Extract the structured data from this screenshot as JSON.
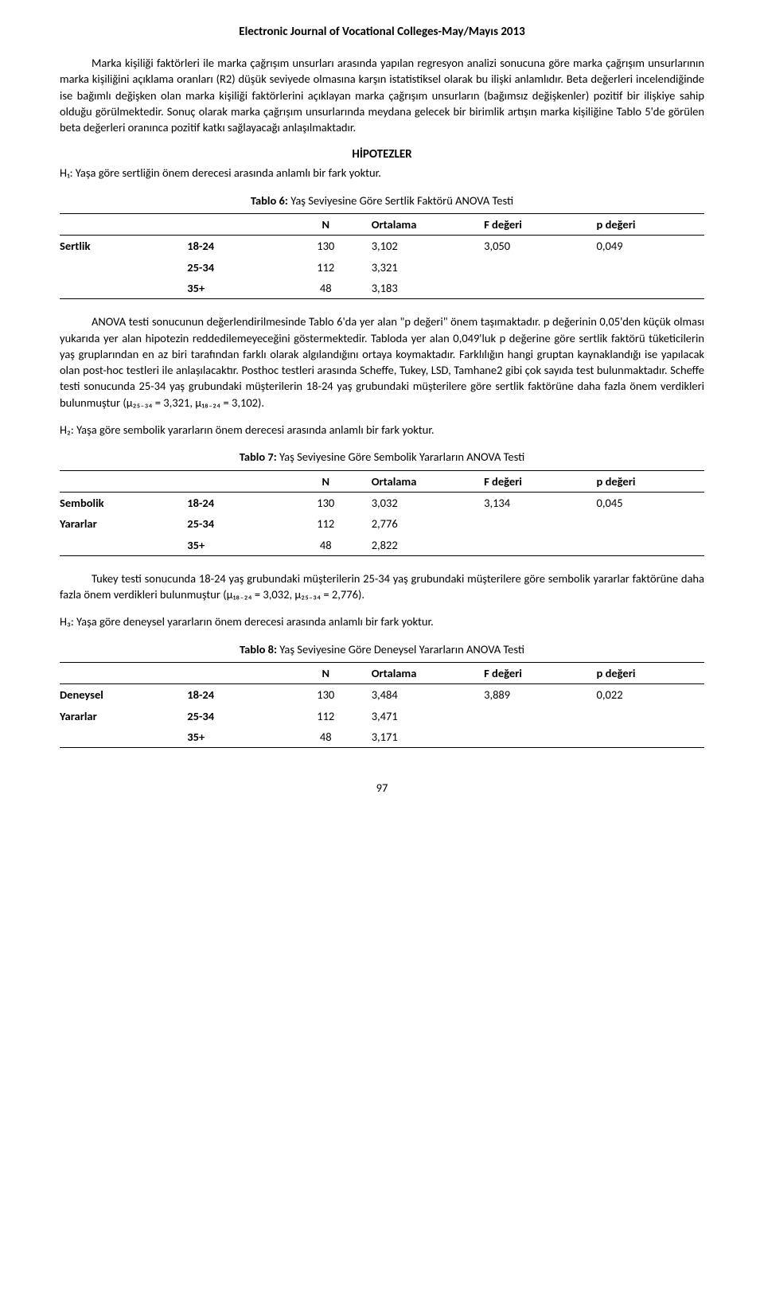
{
  "header": "Electronic Journal of Vocational Colleges-May/Mayıs 2013",
  "para1": "Marka kişiliği faktörleri ile marka çağrışım unsurları arasında yapılan regresyon analizi sonucuna göre marka çağrışım unsurlarının marka kişiliğini açıklama oranları (R2) düşük seviyede olmasına karşın istatistiksel olarak bu ilişki anlamlıdır. Beta değerleri incelendiğinde ise bağımlı değişken olan marka kişiliği faktörlerini açıklayan marka çağrışım unsurların (bağımsız değişkenler) pozitif bir ilişkiye sahip olduğu görülmektedir. Sonuç olarak marka çağrışım unsurlarında meydana gelecek bir birimlik artışın marka kişiliğine Tablo 5'de görülen beta değerleri oranınca pozitif katkı sağlayacağı anlaşılmaktadır.",
  "hipotezler_title": "HİPOTEZLER",
  "h1": "H₁: Yaşa göre sertliğin önem derecesi arasında anlamlı bir fark yoktur.",
  "table6": {
    "caption_bold": "Tablo 6:",
    "caption_rest": " Yaş Seviyesine Göre Sertlik Faktörü ANOVA Testi",
    "headers": {
      "n": "N",
      "mean": "Ortalama",
      "f": "F değeri",
      "p": "p değeri"
    },
    "rowlabel": "Sertlik",
    "rows": [
      {
        "age": "18-24",
        "n": "130",
        "mean": "3,102",
        "f": "3,050",
        "p": "0,049"
      },
      {
        "age": "25-34",
        "n": "112",
        "mean": "3,321",
        "f": "",
        "p": ""
      },
      {
        "age": "35+",
        "n": "48",
        "mean": "3,183",
        "f": "",
        "p": ""
      }
    ]
  },
  "para2": "ANOVA testi sonucunun değerlendirilmesinde Tablo 6'da yer alan \"p değeri\" önem taşımaktadır. p değerinin 0,05'den küçük olması yukarıda yer alan hipotezin reddedilemeyeceğini göstermektedir. Tabloda yer alan 0,049'luk p değerine göre sertlik faktörü tüketicilerin yaş gruplarından en az biri tarafından farklı olarak algılandığını ortaya koymaktadır. Farklılığın hangi gruptan kaynaklandığı ise yapılacak olan post-hoc testleri ile anlaşılacaktır. Posthoc testleri arasında Scheffe, Tukey, LSD, Tamhane2 gibi çok sayıda test bulunmaktadır. Scheffe testi sonucunda 25-34 yaş grubundaki müşterilerin 18-24 yaş grubundaki müşterilere göre sertlik faktörüne daha fazla önem verdikleri bulunmuştur (µ₂₅₋₃₄ = 3,321, µ₁₈₋₂₄ = 3,102).",
  "h2": "H₂: Yaşa göre sembolik yararların önem derecesi arasında anlamlı bir fark yoktur.",
  "table7": {
    "caption_bold": "Tablo 7:",
    "caption_rest": " Yaş Seviyesine Göre Sembolik Yararların ANOVA Testi",
    "headers": {
      "n": "N",
      "mean": "Ortalama",
      "f": "F değeri",
      "p": "p değeri"
    },
    "rowlabel1": "Sembolik",
    "rowlabel2": "Yararlar",
    "rows": [
      {
        "age": "18-24",
        "n": "130",
        "mean": "3,032",
        "f": "3,134",
        "p": "0,045"
      },
      {
        "age": "25-34",
        "n": "112",
        "mean": "2,776",
        "f": "",
        "p": ""
      },
      {
        "age": "35+",
        "n": "48",
        "mean": "2,822",
        "f": "",
        "p": ""
      }
    ]
  },
  "para3": "Tukey testi sonucunda 18-24 yaş grubundaki müşterilerin 25-34 yaş grubundaki müşterilere göre sembolik yararlar faktörüne daha fazla önem verdikleri bulunmuştur (µ₁₈₋₂₄ = 3,032, µ₂₅₋₃₄ = 2,776).",
  "h3": "H₃: Yaşa göre deneysel yararların önem derecesi arasında anlamlı bir fark yoktur.",
  "table8": {
    "caption_bold": "Tablo 8:",
    "caption_rest": " Yaş Seviyesine Göre Deneysel Yararların ANOVA Testi",
    "headers": {
      "n": "N",
      "mean": "Ortalama",
      "f": "F değeri",
      "p": "p değeri"
    },
    "rowlabel1": "Deneysel",
    "rowlabel2": "Yararlar",
    "rows": [
      {
        "age": "18-24",
        "n": "130",
        "mean": "3,484",
        "f": "3,889",
        "p": "0,022"
      },
      {
        "age": "25-34",
        "n": "112",
        "mean": "3,471",
        "f": "",
        "p": ""
      },
      {
        "age": "35+",
        "n": "48",
        "mean": "3,171",
        "f": "",
        "p": ""
      }
    ]
  },
  "pagenum": "97"
}
